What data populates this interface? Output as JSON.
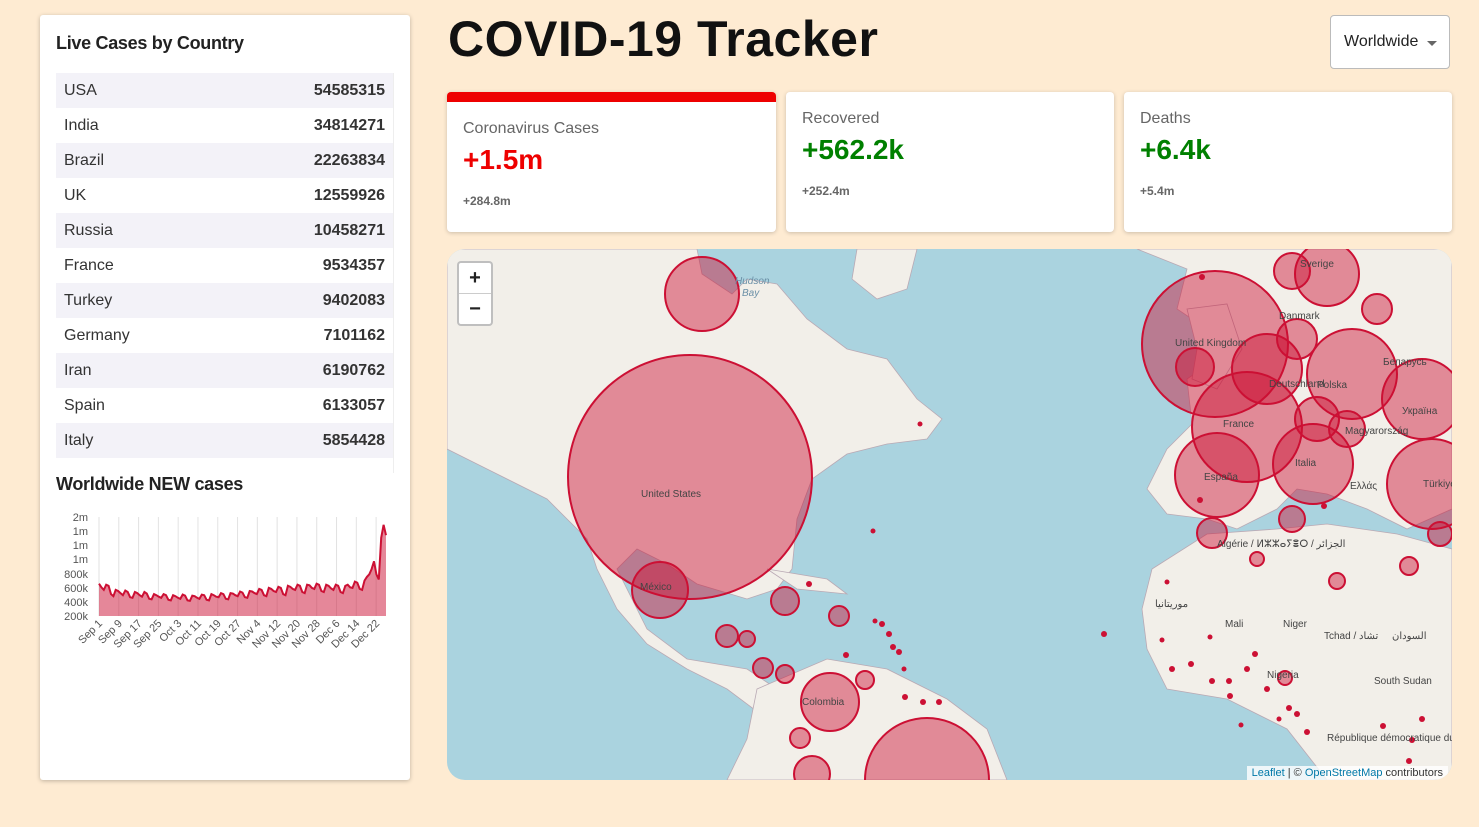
{
  "sidebar": {
    "title": "Live Cases by Country",
    "countries": [
      {
        "name": "USA",
        "cases": "54585315"
      },
      {
        "name": "India",
        "cases": "34814271"
      },
      {
        "name": "Brazil",
        "cases": "22263834"
      },
      {
        "name": "UK",
        "cases": "12559926"
      },
      {
        "name": "Russia",
        "cases": "10458271"
      },
      {
        "name": "France",
        "cases": "9534357"
      },
      {
        "name": "Turkey",
        "cases": "9402083"
      },
      {
        "name": "Germany",
        "cases": "7101162"
      },
      {
        "name": "Iran",
        "cases": "6190762"
      },
      {
        "name": "Spain",
        "cases": "6133057"
      },
      {
        "name": "Italy",
        "cases": "5854428"
      }
    ],
    "chart_title": "Worldwide NEW cases"
  },
  "chart_data": {
    "type": "area",
    "title": "Worldwide NEW cases",
    "y_ticks": [
      "2m",
      "1m",
      "1m",
      "1m",
      "800k",
      "600k",
      "400k",
      "200k"
    ],
    "x_ticks": [
      "Sep 1",
      "Sep 9",
      "Sep 17",
      "Sep 25",
      "Oct 3",
      "Oct 11",
      "Oct 19",
      "Oct 27",
      "Nov 4",
      "Nov 12",
      "Nov 20",
      "Nov 28",
      "Dec 6",
      "Dec 14",
      "Dec 22"
    ],
    "ylim": [
      100000,
      2000000
    ],
    "series": [
      {
        "values": [
          720000,
          650000,
          600000,
          700000,
          680000,
          520000,
          480000,
          600000,
          580000,
          540000,
          500000,
          590000,
          560000,
          460000,
          450000,
          560000,
          540000,
          500000,
          470000,
          560000,
          530000,
          430000,
          420000,
          520000,
          500000,
          470000,
          450000,
          520000,
          500000,
          410000,
          400000,
          500000,
          480000,
          450000,
          430000,
          510000,
          490000,
          400000,
          390000,
          490000,
          480000,
          450000,
          430000,
          510000,
          500000,
          410000,
          400000,
          520000,
          500000,
          470000,
          460000,
          540000,
          520000,
          430000,
          420000,
          540000,
          530000,
          500000,
          480000,
          570000,
          550000,
          460000,
          450000,
          580000,
          570000,
          540000,
          520000,
          620000,
          600000,
          500000,
          480000,
          640000,
          620000,
          580000,
          560000,
          660000,
          640000,
          520000,
          500000,
          680000,
          660000,
          620000,
          600000,
          700000,
          680000,
          560000,
          540000,
          700000,
          690000,
          640000,
          620000,
          720000,
          700000,
          580000,
          560000,
          700000,
          680000,
          630000,
          600000,
          700000,
          680000,
          560000,
          540000,
          680000,
          700000,
          650000,
          640000,
          760000,
          740000,
          620000,
          600000,
          780000,
          850000,
          900000,
          1000000,
          1150000,
          900000,
          800000,
          1600000,
          1850000,
          1650000
        ]
      }
    ]
  },
  "header": {
    "title": "COVID-19 Tracker",
    "country_select": "Worldwide"
  },
  "cards": [
    {
      "label": "Coronavirus Cases",
      "today": "+1.5m",
      "total": "+284.8m"
    },
    {
      "label": "Recovered",
      "today": "+562.2k",
      "total": "+252.4m"
    },
    {
      "label": "Deaths",
      "today": "+6.4k",
      "total": "+5.4m"
    }
  ],
  "colors": {
    "cases": "#ee0000",
    "recovered": "#008000",
    "circle": "#cc1034",
    "circle_fill": "rgba(204,16,52,0.45)"
  },
  "map": {
    "zoom_in": "+",
    "zoom_out": "−",
    "labels": [
      "Hudson",
      "Bay",
      "United States",
      "México",
      "Colombia",
      "United Kingdom",
      "France",
      "España",
      "Italia",
      "Ελλάς",
      "Sverige",
      "Україна",
      "Türkiye",
      "Algérie / ⵍⵣⵣⴰⵢⴻⵔ / الجزائر",
      "موريتانيا",
      "Mali",
      "Niger",
      "Tchad / تشاد",
      "السودان",
      "Nigeria",
      "South Sudan",
      "République démocratique du Congo",
      "Беларусь",
      "Polska",
      "Magyarország",
      "Deutschland",
      "Danmark"
    ],
    "attribution_leaflet": "Leaflet",
    "attribution_sep": " | © ",
    "attribution_osm": "OpenStreetMap",
    "attribution_tail": " contributors"
  }
}
